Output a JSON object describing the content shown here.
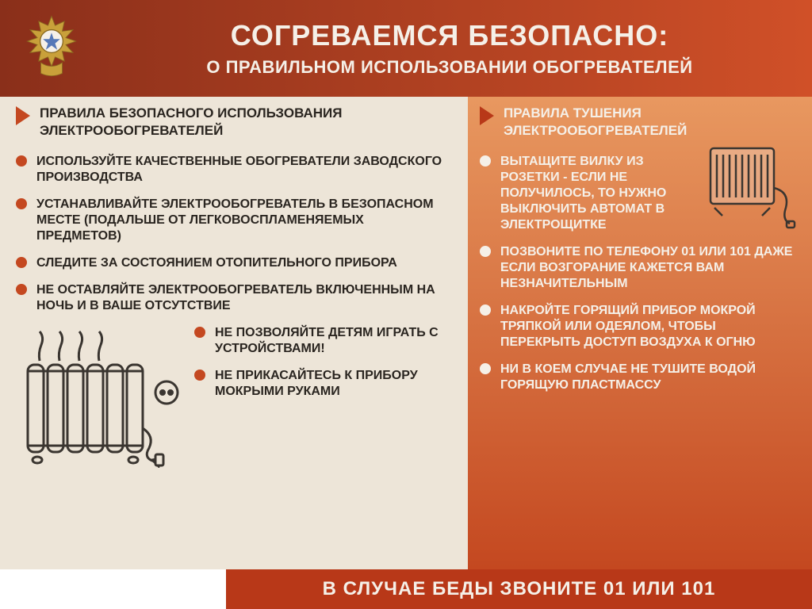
{
  "colors": {
    "header_bg_left": "#8a2f1a",
    "header_bg_right": "#d05028",
    "header_text": "#f5f0e8",
    "left_bg": "#ede5d8",
    "right_bg_top": "#e89860",
    "right_bg_bottom": "#c44820",
    "left_text": "#2a2520",
    "right_text": "#f5f0e8",
    "left_arrow": "#c44820",
    "right_arrow": "#b83818",
    "left_bullet": "#c44820",
    "right_bullet": "#f5f0e8",
    "footer_bg": "#b83818",
    "footer_text": "#f5f0e8",
    "emblem_gold": "#c9a03a",
    "emblem_center": "#5578b8",
    "art_stroke": "#3a3530"
  },
  "header": {
    "title": "СОГРЕВАЕМСЯ БЕЗОПАСНО:",
    "subtitle": "О ПРАВИЛЬНОМ ИСПОЛЬЗОВАНИИ ОБОГРЕВАТЕЛЕЙ"
  },
  "left": {
    "section_title": "ПРАВИЛА БЕЗОПАСНОГО ИСПОЛЬЗОВАНИЯ ЭЛЕКТРООБОГРЕВАТЕЛЕЙ",
    "items": [
      "ИСПОЛЬЗУЙТЕ КАЧЕСТВЕННЫЕ ОБОГРЕВАТЕЛИ ЗАВОДСКОГО ПРОИЗВОДСТВА",
      "УСТАНАВЛИВАЙТЕ ЭЛЕКТРООБОГРЕВАТЕЛЬ В БЕЗОПАСНОМ МЕСТЕ (ПОДАЛЬШЕ ОТ ЛЕГКОВОСПЛАМЕНЯЕМЫХ ПРЕДМЕТОВ)",
      "СЛЕДИТЕ ЗА СОСТОЯНИЕМ ОТОПИТЕЛЬНОГО ПРИБОРА",
      "НЕ ОСТАВЛЯЙТЕ ЭЛЕКТРООБОГРЕВАТЕЛЬ ВКЛЮЧЕННЫМ НА НОЧЬ И В ВАШЕ ОТСУТСТВИЕ"
    ],
    "bottom_items": [
      "НЕ ПОЗВОЛЯЙТЕ ДЕТЯМ ИГРАТЬ С УСТРОЙСТВАМИ!",
      "НЕ ПРИКАСАЙТЕСЬ К ПРИБОРУ МОКРЫМИ РУКАМИ"
    ]
  },
  "right": {
    "section_title": "ПРАВИЛА ТУШЕНИЯ ЭЛЕКТРООБОГРЕВАТЕЛЕЙ",
    "items": [
      "ВЫТАЩИТЕ ВИЛКУ ИЗ РОЗЕТКИ - ЕСЛИ НЕ ПОЛУЧИЛОСЬ, ТО НУЖНО ВЫКЛЮЧИТЬ АВТОМАТ В ЭЛЕКТРОЩИТКЕ",
      "ПОЗВОНИТЕ ПО ТЕЛЕФОНУ 01 ИЛИ 101 ДАЖЕ ЕСЛИ ВОЗГОРАНИЕ КАЖЕТСЯ ВАМ НЕЗНАЧИТЕЛЬНЫМ",
      "НАКРОЙТЕ ГОРЯЩИЙ ПРИБОР МОКРОЙ ТРЯПКОЙ ИЛИ ОДЕЯЛОМ, ЧТОБЫ ПЕРЕКРЫТЬ ДОСТУП ВОЗДУХА К ОГНЮ",
      "НИ В КОЕМ СЛУЧАЕ НЕ ТУШИТЕ ВОДОЙ ГОРЯЩУЮ ПЛАСТМАССУ"
    ]
  },
  "footer": {
    "text": "В СЛУЧАЕ БЕДЫ ЗВОНИТЕ 01 ИЛИ 101"
  }
}
